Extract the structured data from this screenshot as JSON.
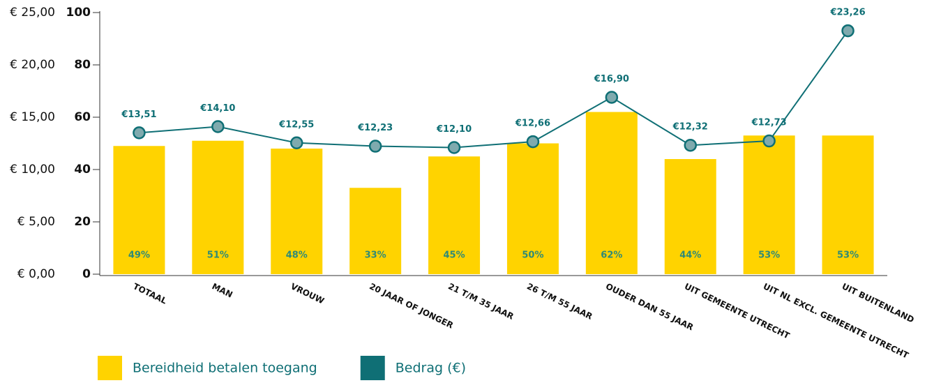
{
  "chart_data": {
    "type": "bar",
    "categories": [
      "TOTAAL",
      "MAN",
      "VROUW",
      "20 JAAR OF JONGER",
      "21 T/M 35 JAAR",
      "26 T/M 55 JAAR",
      "OUDER DAN 55 JAAR",
      "UIT GEMEENTE UTRECHT",
      "UIT NL EXCL. GEMEENTE UTRECHT",
      "UIT BUITENLAND"
    ],
    "series": [
      {
        "name": "Bereidheid betalen toegang",
        "color": "#ffd300",
        "values": [
          49,
          51,
          48,
          33,
          45,
          50,
          62,
          44,
          53,
          53
        ],
        "value_labels": [
          "49%",
          "51%",
          "48%",
          "33%",
          "45%",
          "50%",
          "62%",
          "44%",
          "53%",
          "53%"
        ]
      },
      {
        "name": "Bedrag (€)",
        "color": "#0f6f75",
        "type": "line",
        "axis": "y2",
        "values": [
          13.51,
          14.1,
          12.55,
          12.23,
          12.1,
          12.66,
          16.9,
          12.32,
          12.73,
          23.26
        ],
        "value_labels": [
          "€13,51",
          "€14,10",
          "€12,55",
          "€12,23",
          "€12,10",
          "€12,66",
          "€16,90",
          "€12,32",
          "€12,73",
          "€23,26"
        ]
      }
    ],
    "ylim": [
      0,
      100
    ],
    "yticks": [
      0,
      20,
      40,
      60,
      80,
      100
    ],
    "y2lim": [
      0,
      25
    ],
    "y2ticks": [
      {
        "value": 0,
        "label": "€ 0,00"
      },
      {
        "value": 5,
        "label": "€ 5,00"
      },
      {
        "value": 10,
        "label": "€ 10,00"
      },
      {
        "value": 15,
        "label": "€ 15,00"
      },
      {
        "value": 20,
        "label": "€ 20,00"
      },
      {
        "value": 25,
        "label": "€ 25,00"
      }
    ],
    "grid": false,
    "legend": "bottom-left"
  }
}
